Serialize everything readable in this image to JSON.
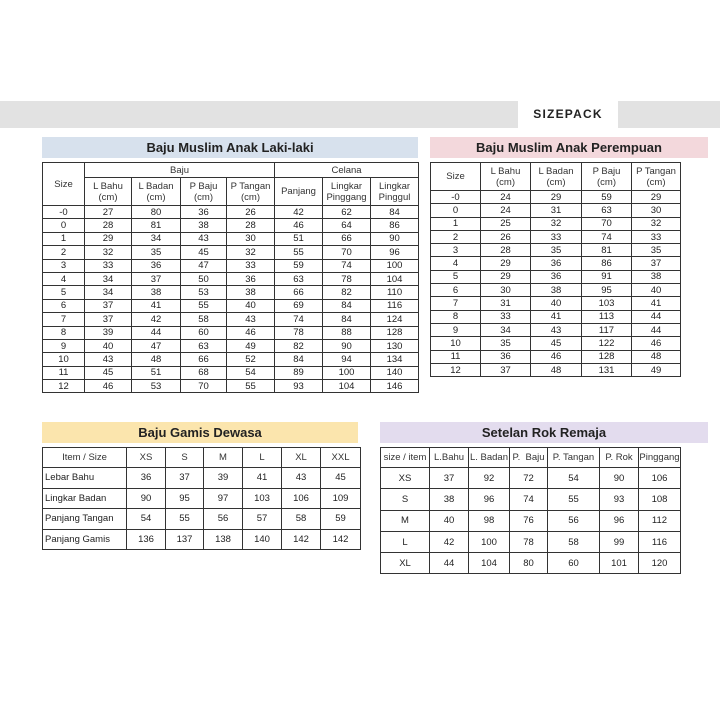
{
  "header": {
    "brand": "SIZEPACK"
  },
  "colors": {
    "boys_title": "#d7e1ed",
    "girls_title": "#f3d8dc",
    "gamis_title": "#fbe5ad",
    "rok_title": "#e3dcee",
    "band": "#e2e2e2"
  },
  "boys": {
    "title": "Baju Muslim Anak Laki-laki",
    "group_baju": "Baju",
    "group_celana": "Celana",
    "columns": [
      "Size",
      "L Bahu\n(cm)",
      "L Badan\n(cm)",
      "P Baju\n(cm)",
      "P Tangan\n(cm)",
      "Panjang",
      "Lingkar\nPinggang",
      "Lingkar\nPinggul"
    ],
    "rows": [
      [
        "-0",
        "27",
        "80",
        "36",
        "26",
        "42",
        "62",
        "84"
      ],
      [
        "0",
        "28",
        "81",
        "38",
        "28",
        "46",
        "64",
        "86"
      ],
      [
        "1",
        "29",
        "34",
        "43",
        "30",
        "51",
        "66",
        "90"
      ],
      [
        "2",
        "32",
        "35",
        "45",
        "32",
        "55",
        "70",
        "96"
      ],
      [
        "3",
        "33",
        "36",
        "47",
        "33",
        "59",
        "74",
        "100"
      ],
      [
        "4",
        "34",
        "37",
        "50",
        "36",
        "63",
        "78",
        "104"
      ],
      [
        "5",
        "34",
        "38",
        "53",
        "38",
        "66",
        "82",
        "110"
      ],
      [
        "6",
        "37",
        "41",
        "55",
        "40",
        "69",
        "84",
        "116"
      ],
      [
        "7",
        "37",
        "42",
        "58",
        "43",
        "74",
        "84",
        "124"
      ],
      [
        "8",
        "39",
        "44",
        "60",
        "46",
        "78",
        "88",
        "128"
      ],
      [
        "9",
        "40",
        "47",
        "63",
        "49",
        "82",
        "90",
        "130"
      ],
      [
        "10",
        "43",
        "48",
        "66",
        "52",
        "84",
        "94",
        "134"
      ],
      [
        "11",
        "45",
        "51",
        "68",
        "54",
        "89",
        "100",
        "140"
      ],
      [
        "12",
        "46",
        "53",
        "70",
        "55",
        "93",
        "104",
        "146"
      ]
    ]
  },
  "girls": {
    "title": "Baju Muslim Anak Perempuan",
    "columns": [
      "Size",
      "L Bahu\n(cm)",
      "L Badan\n(cm)",
      "P Baju\n(cm)",
      "P Tangan\n(cm)"
    ],
    "rows": [
      [
        "-0",
        "24",
        "29",
        "59",
        "29"
      ],
      [
        "0",
        "24",
        "31",
        "63",
        "30"
      ],
      [
        "1",
        "25",
        "32",
        "70",
        "32"
      ],
      [
        "2",
        "26",
        "33",
        "74",
        "33"
      ],
      [
        "3",
        "28",
        "35",
        "81",
        "35"
      ],
      [
        "4",
        "29",
        "36",
        "86",
        "37"
      ],
      [
        "5",
        "29",
        "36",
        "91",
        "38"
      ],
      [
        "6",
        "30",
        "38",
        "95",
        "40"
      ],
      [
        "7",
        "31",
        "40",
        "103",
        "41"
      ],
      [
        "8",
        "33",
        "41",
        "113",
        "44"
      ],
      [
        "9",
        "34",
        "43",
        "117",
        "44"
      ],
      [
        "10",
        "35",
        "45",
        "122",
        "46"
      ],
      [
        "11",
        "36",
        "46",
        "128",
        "48"
      ],
      [
        "12",
        "37",
        "48",
        "131",
        "49"
      ]
    ]
  },
  "gamis": {
    "title": "Baju Gamis Dewasa",
    "columns": [
      "Item / Size",
      "XS",
      "S",
      "M",
      "L",
      "XL",
      "XXL"
    ],
    "rows": [
      [
        "Lebar Bahu",
        "36",
        "37",
        "39",
        "41",
        "43",
        "45"
      ],
      [
        "Lingkar Badan",
        "90",
        "95",
        "97",
        "103",
        "106",
        "109"
      ],
      [
        "Panjang Tangan",
        "54",
        "55",
        "56",
        "57",
        "58",
        "59"
      ],
      [
        "Panjang Gamis",
        "136",
        "137",
        "138",
        "140",
        "142",
        "142"
      ]
    ]
  },
  "rok": {
    "title": "Setelan Rok Remaja",
    "columns": [
      "size / item",
      "L.Bahu",
      "L. Badan",
      "P.  Baju",
      "P. Tangan",
      "P. Rok",
      "Pinggang"
    ],
    "rows": [
      [
        "XS",
        "37",
        "92",
        "72",
        "54",
        "90",
        "106"
      ],
      [
        "S",
        "38",
        "96",
        "74",
        "55",
        "93",
        "108"
      ],
      [
        "M",
        "40",
        "98",
        "76",
        "56",
        "96",
        "112"
      ],
      [
        "L",
        "42",
        "100",
        "78",
        "58",
        "99",
        "116"
      ],
      [
        "XL",
        "44",
        "104",
        "80",
        "60",
        "101",
        "120"
      ]
    ]
  }
}
